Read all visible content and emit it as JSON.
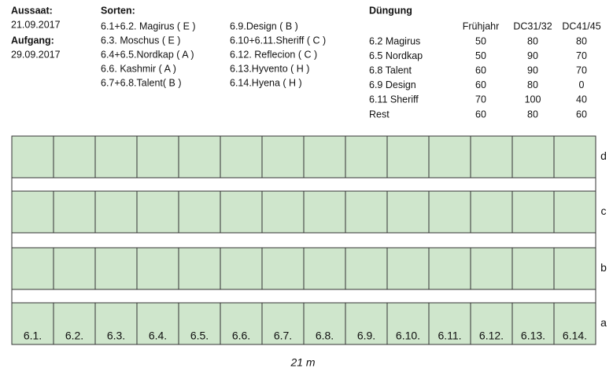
{
  "dates": [
    {
      "label": "Aussaat:",
      "value": "21.09.2017"
    },
    {
      "label": "Aufgang:",
      "value": "29.09.2017"
    }
  ],
  "sorten": {
    "title": "Sorten:",
    "columns": [
      [
        "6.1+6.2. Magirus ( E )",
        "6.3. Moschus ( E )",
        "6.4+6.5.Nordkap ( A )",
        "6.6. Kashmir ( A )",
        "6.7+6.8.Talent( B )"
      ],
      [
        "6.9.Design ( B )",
        "6.10+6.11.Sheriff ( C )",
        "6.12. Reflecion ( C )",
        "6.13.Hyvento ( H )",
        "6.14.Hyena ( H )"
      ]
    ]
  },
  "duengung": {
    "title": "Düngung",
    "headers": [
      "Frühjahr",
      "DC31/32",
      "DC41/45"
    ],
    "rows": [
      [
        "6.2 Magirus",
        50,
        80,
        80
      ],
      [
        "6.5 Nordkap",
        50,
        90,
        70
      ],
      [
        "6.8 Talent",
        60,
        90,
        70
      ],
      [
        "6.9 Design",
        60,
        80,
        0
      ],
      [
        "6.11 Sheriff",
        70,
        100,
        40
      ],
      [
        "Rest",
        60,
        80,
        60
      ]
    ]
  },
  "field": {
    "rows": [
      "d",
      "c",
      "b",
      "a"
    ],
    "plots": [
      "6.1.",
      "6.2.",
      "6.3.",
      "6.4.",
      "6.5.",
      "6.6.",
      "6.7.",
      "6.8.",
      "6.9.",
      "6.10.",
      "6.11.",
      "6.12.",
      "6.13.",
      "6.14."
    ],
    "width": "21 m"
  }
}
